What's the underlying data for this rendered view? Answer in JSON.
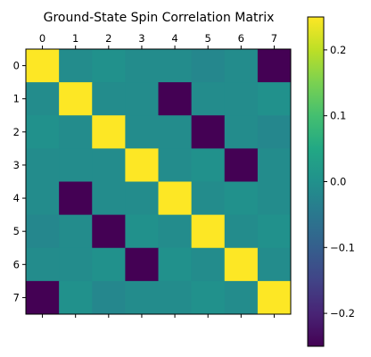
{
  "chart_data": {
    "type": "heatmap",
    "title": "Ground-State Spin Correlation Matrix",
    "x_tick_labels": [
      "0",
      "1",
      "2",
      "3",
      "4",
      "5",
      "6",
      "7"
    ],
    "y_tick_labels": [
      "0",
      "1",
      "2",
      "3",
      "4",
      "5",
      "6",
      "7"
    ],
    "colormap": "viridis",
    "vmin": -0.25,
    "vmax": 0.25,
    "matrix": [
      [
        0.25,
        -0.01,
        0.0,
        -0.01,
        -0.01,
        -0.02,
        -0.01,
        -0.25
      ],
      [
        -0.01,
        0.25,
        -0.01,
        -0.01,
        -0.25,
        -0.01,
        -0.01,
        0.0
      ],
      [
        0.0,
        -0.01,
        0.25,
        -0.01,
        -0.01,
        -0.25,
        -0.01,
        -0.02
      ],
      [
        -0.01,
        -0.01,
        -0.01,
        0.25,
        -0.01,
        0.0,
        -0.25,
        -0.01
      ],
      [
        -0.01,
        -0.25,
        -0.01,
        -0.01,
        0.25,
        -0.01,
        0.0,
        -0.01
      ],
      [
        -0.02,
        -0.01,
        -0.25,
        0.0,
        -0.01,
        0.25,
        -0.01,
        0.0
      ],
      [
        -0.01,
        -0.01,
        0.0,
        -0.25,
        0.0,
        -0.01,
        0.25,
        -0.01
      ],
      [
        -0.25,
        0.0,
        -0.02,
        -0.01,
        -0.01,
        0.0,
        -0.01,
        0.25
      ]
    ],
    "colorbar_ticks": [
      0.2,
      0.1,
      0.0,
      -0.1,
      -0.2
    ],
    "colorbar_tick_labels": [
      "0.2",
      "0.1",
      "0.0",
      "−0.1",
      "−0.2"
    ],
    "grid": false
  }
}
